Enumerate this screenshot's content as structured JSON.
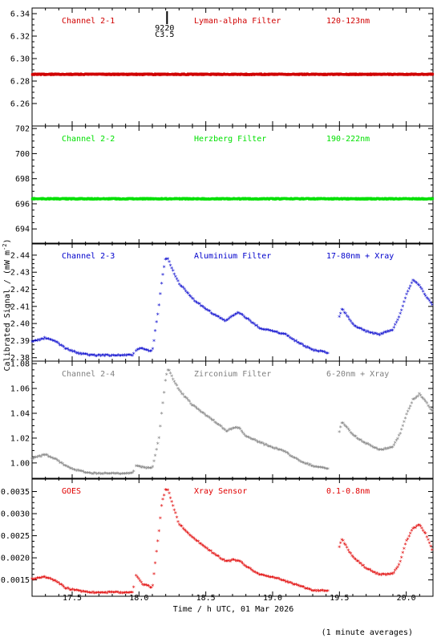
{
  "chart_data": {
    "type": "scatter",
    "xlabel": "Time / h UTC, 01 Mar 2026",
    "ylabel": "Calibrated Signal / (mW m",
    "ylabel_sup": "-2",
    "ylabel_close": ")",
    "footnote": "(1 minute averages)",
    "x_range": [
      17.2,
      20.2
    ],
    "x_ticks": [
      "17.5",
      "18.0",
      "18.5",
      "19.0",
      "19.5",
      "20.0"
    ],
    "marker": {
      "time": 18.21,
      "label_top": "9220",
      "label_bottom": "C3.5"
    },
    "panels": [
      {
        "name": "Channel 2-1",
        "filter": "Lyman-alpha Filter",
        "band": "120-123nm",
        "color": "#d00000",
        "ylim": [
          6.24,
          6.345
        ],
        "yticks": [
          "6.26",
          "6.28",
          "6.30",
          "6.32",
          "6.34"
        ],
        "x": [
          17.2,
          17.5,
          18.0,
          18.5,
          19.0,
          19.5,
          20.0,
          20.2
        ],
        "values": [
          6.286,
          6.286,
          6.286,
          6.286,
          6.286,
          6.286,
          6.286,
          6.286
        ]
      },
      {
        "name": "Channel 2-2",
        "filter": "Herzberg Filter",
        "band": "190-222nm",
        "color": "#00e000",
        "ylim": [
          692.8,
          702.2
        ],
        "yticks": [
          "694",
          "696",
          "698",
          "700",
          "702"
        ],
        "x": [
          17.2,
          17.5,
          18.0,
          18.5,
          19.0,
          19.5,
          20.0,
          20.2
        ],
        "values": [
          696.4,
          696.4,
          696.4,
          696.4,
          696.4,
          696.4,
          696.4,
          696.4
        ]
      },
      {
        "name": "Channel 2-3",
        "filter": "Aluminium Filter",
        "band": "17-80nm + Xray",
        "color": "#0000cc",
        "ylim": [
          2.378,
          2.447
        ],
        "yticks": [
          "2.38",
          "2.39",
          "2.40",
          "2.41",
          "2.42",
          "2.43",
          "2.44"
        ],
        "x": [
          17.2,
          17.3,
          17.38,
          17.45,
          17.55,
          17.65,
          17.8,
          17.95,
          17.98,
          18.02,
          18.1,
          18.13,
          18.15,
          18.17,
          18.2,
          18.22,
          18.25,
          18.3,
          18.4,
          18.5,
          18.6,
          18.65,
          18.7,
          18.75,
          18.8,
          18.9,
          19.0,
          19.1,
          19.2,
          19.3,
          19.45,
          19.5,
          19.52,
          19.55,
          19.6,
          19.7,
          19.8,
          19.9,
          19.95,
          20.0,
          20.05,
          20.1,
          20.15,
          20.2
        ],
        "values": [
          2.389,
          2.391,
          2.389,
          2.385,
          2.382,
          2.381,
          2.381,
          2.381,
          2.384,
          2.385,
          2.383,
          2.4,
          2.41,
          2.424,
          2.438,
          2.437,
          2.431,
          2.423,
          2.414,
          2.408,
          2.403,
          2.401,
          2.404,
          2.406,
          2.403,
          2.397,
          2.395,
          2.393,
          2.388,
          2.384,
          2.382,
          2.404,
          2.408,
          2.405,
          2.399,
          2.395,
          2.393,
          2.396,
          2.404,
          2.416,
          2.425,
          2.422,
          2.415,
          2.41
        ]
      },
      {
        "name": "Channel 2-4",
        "filter": "Zirconium Filter",
        "band": "6-20nm + Xray",
        "color": "#808080",
        "ylim": [
          0.987,
          1.082
        ],
        "yticks": [
          "1.00",
          "1.02",
          "1.04",
          "1.06",
          "1.08"
        ],
        "x": [
          17.2,
          17.3,
          17.38,
          17.45,
          17.55,
          17.65,
          17.8,
          17.95,
          17.98,
          18.02,
          18.1,
          18.13,
          18.15,
          18.17,
          18.2,
          18.22,
          18.25,
          18.3,
          18.4,
          18.5,
          18.6,
          18.65,
          18.7,
          18.75,
          18.8,
          18.9,
          19.0,
          19.1,
          19.2,
          19.3,
          19.45,
          19.5,
          19.52,
          19.55,
          19.6,
          19.7,
          19.8,
          19.9,
          19.95,
          20.0,
          20.05,
          20.1,
          20.15,
          20.2
        ],
        "values": [
          1.003,
          1.006,
          1.002,
          0.997,
          0.993,
          0.991,
          0.991,
          0.991,
          0.997,
          0.996,
          0.995,
          1.01,
          1.02,
          1.04,
          1.068,
          1.076,
          1.068,
          1.058,
          1.046,
          1.038,
          1.03,
          1.025,
          1.027,
          1.028,
          1.021,
          1.016,
          1.012,
          1.008,
          1.001,
          0.997,
          0.994,
          1.025,
          1.032,
          1.029,
          1.022,
          1.015,
          1.01,
          1.012,
          1.022,
          1.038,
          1.05,
          1.055,
          1.048,
          1.04
        ]
      },
      {
        "name": "GOES",
        "filter": "Xray Sensor",
        "band": "0.1-0.8nm",
        "color": "#e00000",
        "ylim": [
          0.00113,
          0.0038
        ],
        "yticks": [
          "0.0015",
          "0.0020",
          "0.0025",
          "0.0030",
          "0.0035"
        ],
        "x": [
          17.2,
          17.3,
          17.38,
          17.45,
          17.55,
          17.65,
          17.8,
          17.95,
          17.98,
          18.02,
          18.1,
          18.13,
          18.15,
          18.17,
          18.2,
          18.22,
          18.25,
          18.3,
          18.4,
          18.5,
          18.6,
          18.65,
          18.7,
          18.75,
          18.8,
          18.9,
          19.0,
          19.1,
          19.2,
          19.3,
          19.45,
          19.5,
          19.52,
          19.55,
          19.6,
          19.7,
          19.8,
          19.9,
          19.95,
          20.0,
          20.05,
          20.1,
          20.15,
          20.2
        ],
        "values": [
          0.0015,
          0.00155,
          0.00145,
          0.0013,
          0.00123,
          0.0012,
          0.0012,
          0.0012,
          0.0016,
          0.0014,
          0.0013,
          0.0021,
          0.0026,
          0.0032,
          0.00355,
          0.0035,
          0.0032,
          0.00275,
          0.00245,
          0.0022,
          0.002,
          0.0019,
          0.00193,
          0.00192,
          0.0018,
          0.0016,
          0.00155,
          0.00145,
          0.00135,
          0.00125,
          0.00122,
          0.00225,
          0.0024,
          0.00225,
          0.002,
          0.00175,
          0.0016,
          0.00162,
          0.00185,
          0.00235,
          0.00265,
          0.00272,
          0.0025,
          0.0021
        ]
      }
    ]
  }
}
